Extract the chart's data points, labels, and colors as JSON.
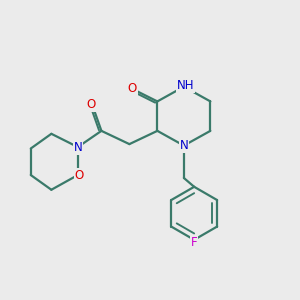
{
  "background_color": "#ebebeb",
  "bond_color": "#3a7a6a",
  "bond_width": 1.6,
  "atom_colors": {
    "N": "#0000cc",
    "O": "#dd0000",
    "F": "#cc00cc",
    "C": "#000000"
  },
  "font_size_atom": 8.5,
  "figsize": [
    3.0,
    3.0
  ],
  "dpi": 100
}
